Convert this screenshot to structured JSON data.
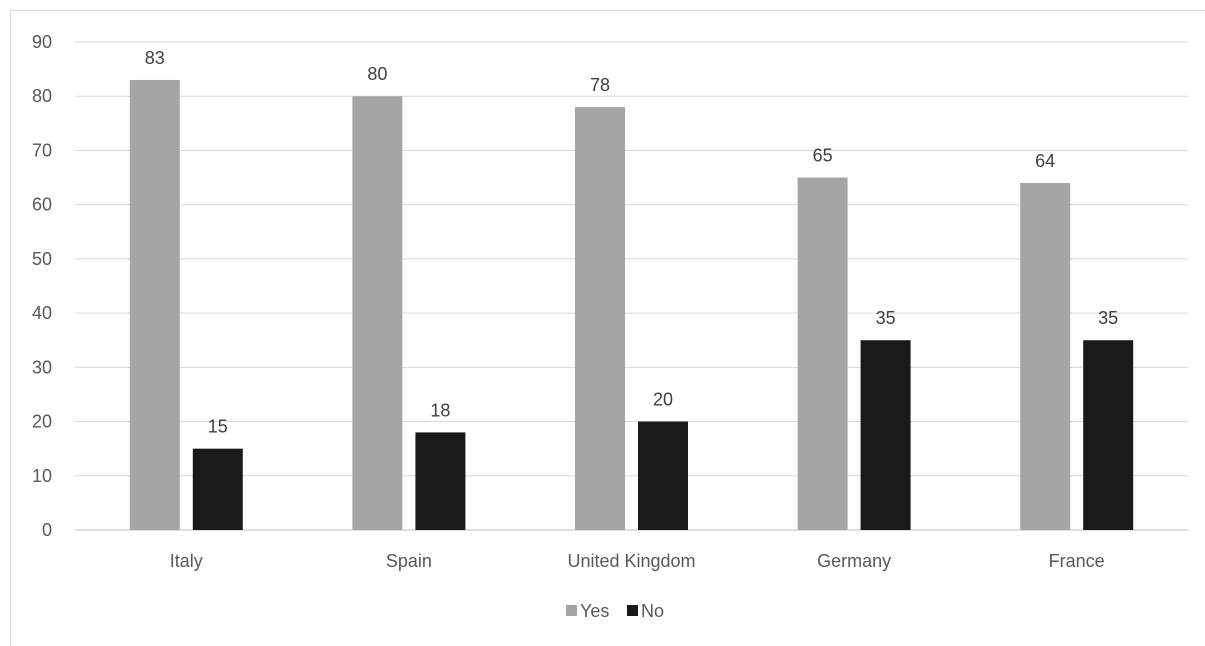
{
  "chart_data": {
    "type": "bar",
    "categories": [
      "Italy",
      "Spain",
      "United Kingdom",
      "Germany",
      "France"
    ],
    "series": [
      {
        "name": "Yes",
        "values": [
          83,
          80,
          78,
          65,
          64
        ],
        "color": "#a5a5a5"
      },
      {
        "name": "No",
        "values": [
          15,
          18,
          20,
          35,
          35
        ],
        "color": "#1a1a1a"
      }
    ],
    "ylim": [
      0,
      90
    ],
    "yticks": [
      0,
      10,
      20,
      30,
      40,
      50,
      60,
      70,
      80,
      90
    ],
    "grid": true,
    "legend": "bottom",
    "data_labels": true
  }
}
